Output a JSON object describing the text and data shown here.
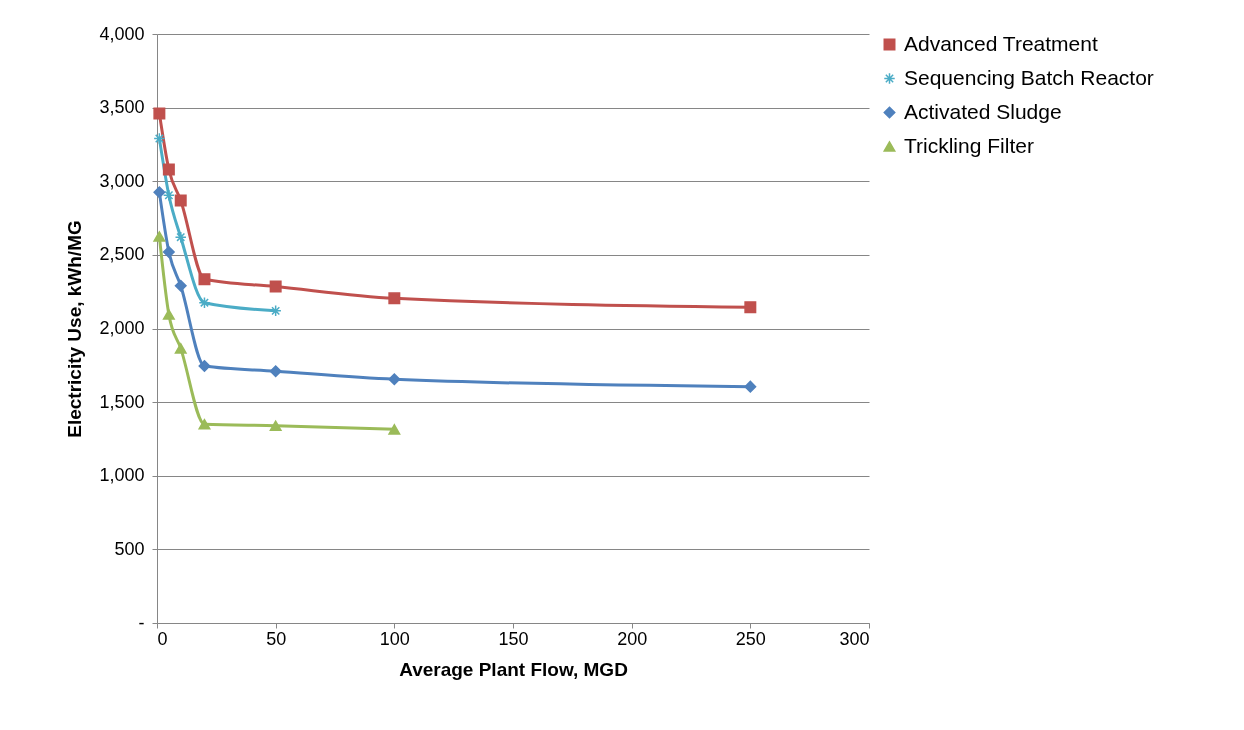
{
  "chart_data": {
    "type": "line",
    "xlabel": "Average Plant Flow, MGD",
    "ylabel": "Electricity Use, kWh/MG",
    "x": [
      1,
      5,
      10,
      20,
      50,
      100,
      250
    ],
    "series": [
      {
        "name": "Advanced Treatment",
        "color": "#c0504d",
        "marker": "square",
        "values": [
          3460,
          3080,
          2870,
          2335,
          2285,
          2205,
          2145
        ]
      },
      {
        "name": "Sequencing Batch Reactor",
        "color": "#4bacc6",
        "marker": "cross",
        "values": [
          3290,
          2905,
          2620,
          2175,
          2120,
          null,
          null
        ]
      },
      {
        "name": "Activated Sludge",
        "color": "#4f81bd",
        "marker": "diamond",
        "values": [
          2925,
          2520,
          2290,
          1745,
          1710,
          1655,
          1605
        ]
      },
      {
        "name": "Trickling Filter",
        "color": "#9bbb59",
        "marker": "triangle",
        "values": [
          2625,
          2095,
          1865,
          1350,
          1340,
          1315,
          null
        ]
      }
    ],
    "xlim": [
      0,
      300
    ],
    "xticks": [
      0,
      50,
      100,
      150,
      200,
      250,
      300
    ],
    "ylim": [
      0,
      4000
    ],
    "yticks": [
      {
        "value": 0,
        "label": "-"
      },
      {
        "value": 500,
        "label": "500"
      },
      {
        "value": 1000,
        "label": "1,000"
      },
      {
        "value": 1500,
        "label": "1,500"
      },
      {
        "value": 2000,
        "label": "2,000"
      },
      {
        "value": 2500,
        "label": "2,500"
      },
      {
        "value": 3000,
        "label": "3,000"
      },
      {
        "value": 3500,
        "label": "3,500"
      },
      {
        "value": 4000,
        "label": "4,000"
      }
    ],
    "grid": "y",
    "legend": "right",
    "line_style": "solid"
  }
}
